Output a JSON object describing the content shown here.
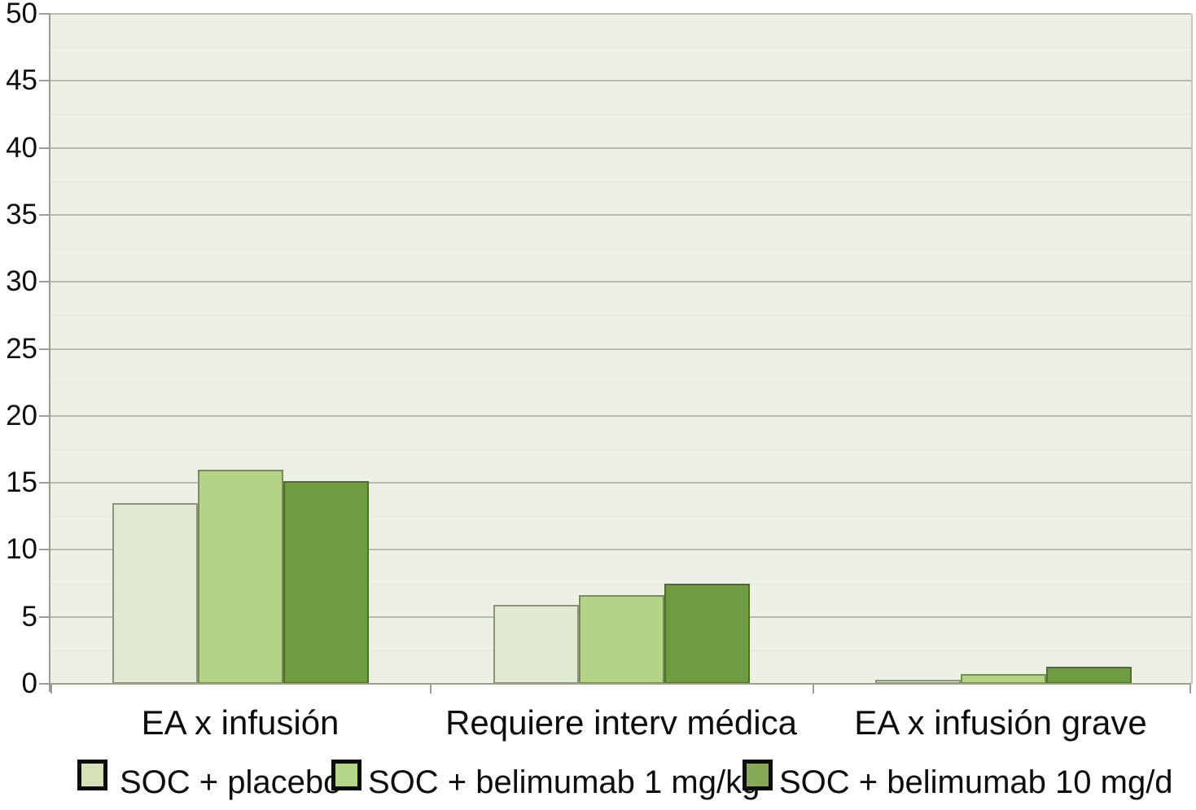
{
  "chart_data": {
    "type": "bar",
    "title": "",
    "xlabel": "",
    "ylabel": "",
    "categories": [
      "EA x infusión",
      "Requiere interv médica",
      "EA x infusión grave"
    ],
    "series": [
      {
        "name": "SOC + placebo",
        "values": [
          13.5,
          5.9,
          0.3
        ],
        "fill": "#e0e9d1",
        "border": "#8a9579",
        "swatch": "#d5e2b8"
      },
      {
        "name": "SOC + belimumab 1 mg/kg",
        "values": [
          16.0,
          6.6,
          0.7
        ],
        "fill": "#b5d386",
        "border": "#74904c",
        "swatch": "#b7d588"
      },
      {
        "name": "SOC + belimumab 10 mg/d",
        "values": [
          15.1,
          7.5,
          1.3
        ],
        "fill": "#6d9c41",
        "border": "#4f6b2e",
        "swatch": "#86a955"
      }
    ],
    "ylim": [
      0,
      50
    ],
    "y_ticks": [
      0,
      5,
      10,
      15,
      20,
      25,
      30,
      35,
      40,
      45,
      50
    ],
    "grid": "horizontal major gridlines with faint minor lines",
    "legend_position": "bottom",
    "colors": {
      "plot_background": "#edf0e5",
      "gridline": "#b6bcad",
      "axis": "#99a091",
      "text": "#0d0d0d"
    }
  }
}
